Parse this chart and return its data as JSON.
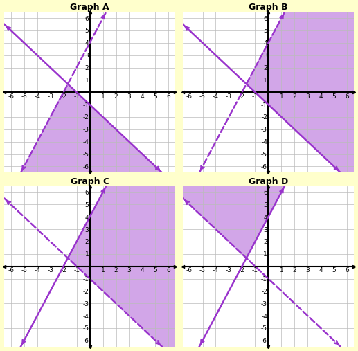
{
  "graphs": [
    {
      "title": "Graph A",
      "line1": {
        "slope": 2,
        "intercept": 4,
        "style": "dashed",
        "color": "#9933cc"
      },
      "line2": {
        "slope": -1,
        "intercept": -1,
        "style": "solid",
        "color": "#9933cc"
      },
      "shade_region": "A"
    },
    {
      "title": "Graph B",
      "line1": {
        "slope": 2,
        "intercept": 4,
        "style": "dashed",
        "color": "#9933cc"
      },
      "line2": {
        "slope": -1,
        "intercept": -1,
        "style": "solid",
        "color": "#9933cc"
      },
      "shade_region": "B"
    },
    {
      "title": "Graph C",
      "line1": {
        "slope": 2,
        "intercept": 4,
        "style": "solid",
        "color": "#9933cc"
      },
      "line2": {
        "slope": -1,
        "intercept": -1,
        "style": "dashed",
        "color": "#9933cc"
      },
      "shade_region": "C"
    },
    {
      "title": "Graph D",
      "line1": {
        "slope": 2,
        "intercept": 4,
        "style": "solid",
        "color": "#9933cc"
      },
      "line2": {
        "slope": -1,
        "intercept": -1,
        "style": "dashed",
        "color": "#9933cc"
      },
      "shade_region": "D"
    }
  ],
  "xlim": [
    -6.5,
    6.5
  ],
  "ylim": [
    -6.5,
    6.5
  ],
  "xticks": [
    -6,
    -5,
    -4,
    -3,
    -2,
    -1,
    1,
    2,
    3,
    4,
    5,
    6
  ],
  "yticks": [
    -6,
    -5,
    -4,
    -3,
    -2,
    -1,
    1,
    2,
    3,
    4,
    5,
    6
  ],
  "bg_color": "#ffffcc",
  "plot_bg": "#ffffff",
  "grid_color": "#bbbbbb",
  "shade_color": "#bb77dd",
  "shade_alpha": 0.65,
  "title_fontsize": 9,
  "tick_fontsize": 6.5,
  "line_lw": 1.8
}
